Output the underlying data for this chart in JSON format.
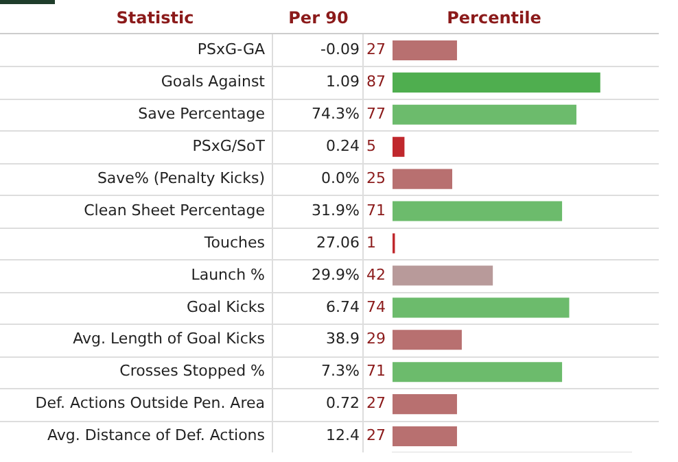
{
  "chart_data": {
    "type": "bar",
    "orientation": "horizontal",
    "categories": [
      "PSxG-GA",
      "Goals Against",
      "Save Percentage",
      "PSxG/SoT",
      "Save% (Penalty Kicks)",
      "Clean Sheet Percentage",
      "Touches",
      "Launch %",
      "Goal Kicks",
      "Avg. Length of Goal Kicks",
      "Crosses Stopped %",
      "Def. Actions Outside Pen. Area",
      "Avg. Distance of Def. Actions"
    ],
    "values": [
      27,
      87,
      77,
      5,
      25,
      71,
      1,
      42,
      74,
      29,
      71,
      27,
      27
    ],
    "colors": [
      "#b87070",
      "#4fae4f",
      "#6cbb6c",
      "#c0282d",
      "#b87070",
      "#6cbb6c",
      "#c0282d",
      "#b89a9a",
      "#6cbb6c",
      "#b87070",
      "#6cbb6c",
      "#b87070",
      "#b87070"
    ],
    "xlim": [
      0,
      100
    ],
    "tick_labels": "y",
    "data_labels": true,
    "legend": false,
    "annotations": [
      "Statistic",
      "Per 90",
      "Percentile",
      "-0.09",
      "1.09",
      "74.3%",
      "0.24",
      "0.0%",
      "31.9%",
      "27.06",
      "29.9%",
      "6.74",
      "38.9",
      "7.3%",
      "0.72",
      "12.4"
    ]
  }
}
